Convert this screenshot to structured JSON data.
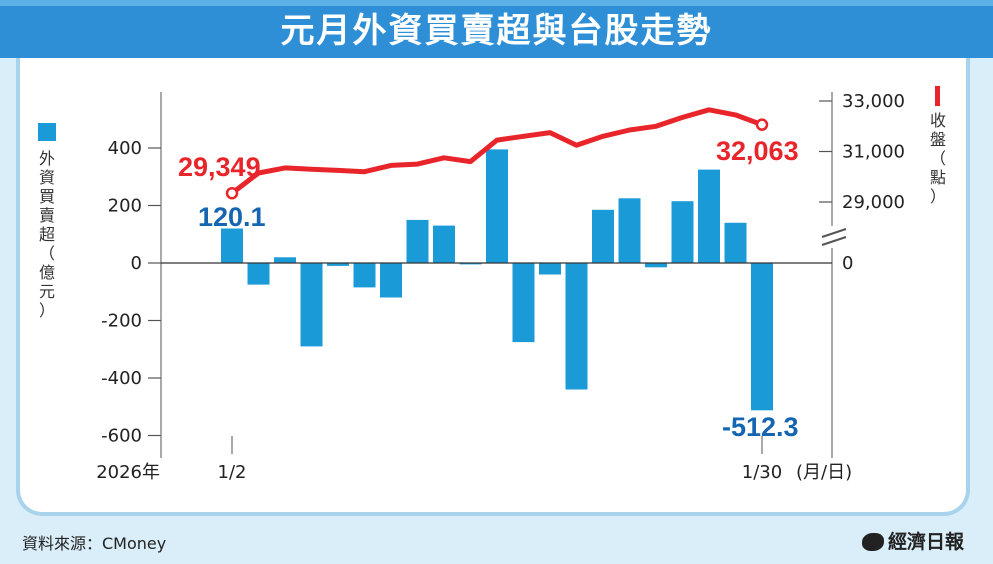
{
  "title": "元月外資買賣超與台股走勢",
  "source": "資料來源：CMoney",
  "brand": "經濟日報",
  "colors": {
    "bar": "#1b9ad8",
    "line": "#e8252b",
    "bar_label": "#1565b0",
    "line_label": "#e8252b",
    "title_bg": "#2e8fd6"
  },
  "chart_data": {
    "type": "bar+line",
    "year_label": "2026年",
    "x_unit_label": "(月/日)",
    "x_tick_labels": [
      "1/2",
      "1/30"
    ],
    "left_axis": {
      "label": "外資買賣超（億元）",
      "ticks": [
        400,
        200,
        0,
        -200,
        -400,
        -600
      ],
      "tick_labels": [
        "400",
        "200",
        "0",
        "-200",
        "-400",
        "-600"
      ],
      "range": [
        -600,
        400
      ]
    },
    "right_axis": {
      "label": "收盤（點）",
      "ticks": [
        33000,
        31000,
        29000
      ],
      "tick_labels": [
        "33,000",
        "31,000",
        "29,000"
      ],
      "zero_label": "0",
      "range": [
        27500,
        33000
      ]
    },
    "bars": {
      "name": "外資買賣超",
      "values": [
        120.1,
        -75,
        20,
        -290,
        -10,
        -85,
        -120,
        150,
        130,
        -5,
        395,
        -275,
        -40,
        -440,
        185,
        225,
        -15,
        215,
        325,
        140,
        -512.3
      ]
    },
    "line": {
      "name": "收盤",
      "values": [
        29349,
        30150,
        30350,
        30300,
        30250,
        30200,
        30450,
        30500,
        30750,
        30600,
        31450,
        31600,
        31750,
        31250,
        31600,
        31850,
        32000,
        32350,
        32650,
        32450,
        32063
      ]
    },
    "annotations": {
      "line_start": "29,349",
      "line_end": "32,063",
      "bar_start": "120.1",
      "bar_end": "-512.3"
    }
  }
}
